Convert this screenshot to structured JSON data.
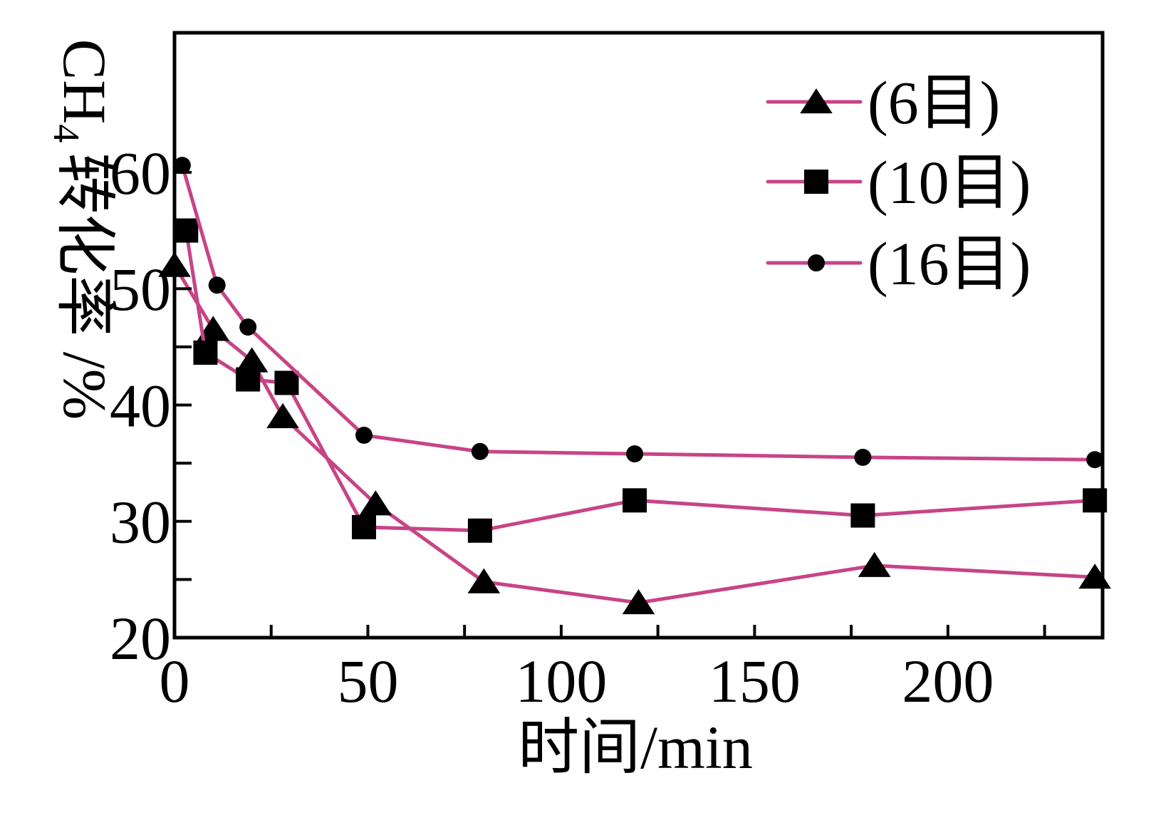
{
  "chart_data": {
    "type": "line",
    "title": "",
    "xlabel": "时间/min",
    "ylabel": {
      "prefix": "CH",
      "subscript": "4",
      "suffix": "转化率 /%"
    },
    "xlim": [
      0,
      240
    ],
    "ylim": [
      20,
      72
    ],
    "xticks": [
      0,
      50,
      100,
      150,
      200
    ],
    "x_minor_ticks": [
      25,
      75,
      125,
      175,
      225
    ],
    "yticks": [
      20,
      30,
      40,
      50,
      60
    ],
    "y_minor_ticks": [
      25,
      35,
      45,
      55
    ],
    "grid": false,
    "legend": "top-right",
    "line_color": "#c74487",
    "marker_color": "#000000",
    "series": [
      {
        "name": "(6目)",
        "marker": "triangle",
        "x": [
          0,
          10,
          20,
          28,
          52,
          80,
          120,
          181,
          238
        ],
        "y": [
          52.0,
          46.5,
          43.8,
          39.0,
          31.5,
          24.8,
          23.0,
          26.2,
          25.2
        ]
      },
      {
        "name": "(10目)",
        "marker": "square",
        "x": [
          3,
          8,
          19,
          29,
          49,
          79,
          119,
          178,
          238
        ],
        "y": [
          55.0,
          44.5,
          42.2,
          41.9,
          29.5,
          29.2,
          31.8,
          30.5,
          31.8
        ]
      },
      {
        "name": "(16目)",
        "marker": "circle",
        "x": [
          2,
          11,
          19,
          49,
          79,
          119,
          178,
          238
        ],
        "y": [
          60.6,
          50.3,
          46.7,
          37.4,
          36.0,
          35.8,
          35.5,
          35.3
        ]
      }
    ]
  }
}
